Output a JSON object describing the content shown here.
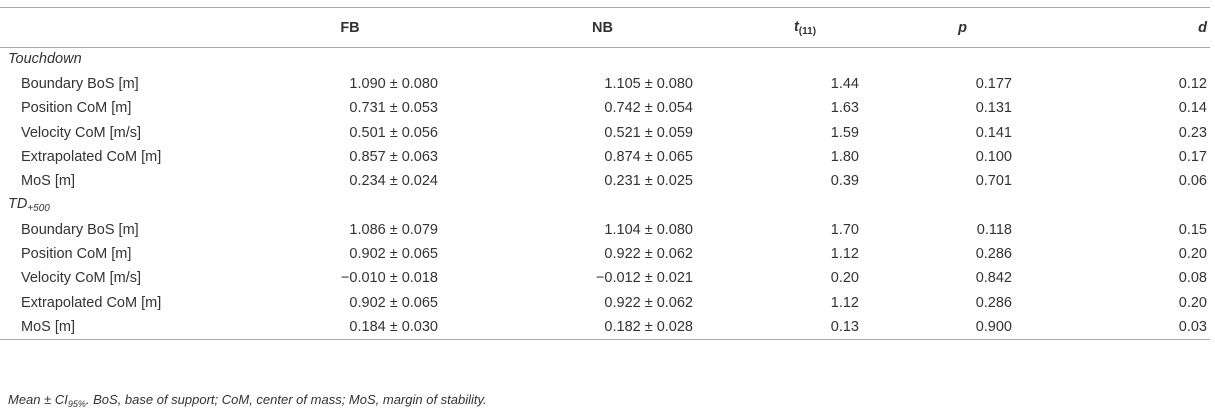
{
  "header": {
    "col0": "",
    "col1": "FB",
    "col2": "NB",
    "col3_main": "t",
    "col3_sub": "(11)",
    "col4": "p",
    "col5": "d"
  },
  "sections": [
    {
      "title_main": "Touchdown",
      "title_sub": "",
      "rows": [
        {
          "label": "Boundary BoS [m]",
          "fb": "1.090 ± 0.080",
          "nb": "1.105 ± 0.080",
          "t": "1.44",
          "p": "0.177",
          "d": "0.12"
        },
        {
          "label": "Position CoM [m]",
          "fb": "0.731 ± 0.053",
          "nb": "0.742 ± 0.054",
          "t": "1.63",
          "p": "0.131",
          "d": "0.14"
        },
        {
          "label": "Velocity CoM [m/s]",
          "fb": "0.501 ± 0.056",
          "nb": "0.521 ± 0.059",
          "t": "1.59",
          "p": "0.141",
          "d": "0.23"
        },
        {
          "label": "Extrapolated CoM [m]",
          "fb": "0.857 ± 0.063",
          "nb": "0.874 ± 0.065",
          "t": "1.80",
          "p": "0.100",
          "d": "0.17"
        },
        {
          "label": "MoS [m]",
          "fb": "0.234 ± 0.024",
          "nb": "0.231 ± 0.025",
          "t": "0.39",
          "p": "0.701",
          "d": "0.06"
        }
      ]
    },
    {
      "title_main": "TD",
      "title_sub": "+500",
      "rows": [
        {
          "label": "Boundary BoS [m]",
          "fb": "1.086 ± 0.079",
          "nb": "1.104 ± 0.080",
          "t": "1.70",
          "p": "0.118",
          "d": "0.15"
        },
        {
          "label": "Position CoM [m]",
          "fb": "0.902 ± 0.065",
          "nb": "0.922 ± 0.062",
          "t": "1.12",
          "p": "0.286",
          "d": "0.20"
        },
        {
          "label": "Velocity CoM [m/s]",
          "fb": "−0.010 ± 0.018",
          "nb": "−0.012 ± 0.021",
          "t": "0.20",
          "p": "0.842",
          "d": "0.08"
        },
        {
          "label": "Extrapolated CoM [m]",
          "fb": "0.902 ± 0.065",
          "nb": "0.922 ± 0.062",
          "t": "1.12",
          "p": "0.286",
          "d": "0.20"
        },
        {
          "label": "MoS [m]",
          "fb": "0.184 ± 0.030",
          "nb": "0.182 ± 0.028",
          "t": "0.13",
          "p": "0.900",
          "d": "0.03"
        }
      ]
    }
  ],
  "footnote": {
    "part1": "Mean ± CI",
    "part1_sub": "95%",
    "part2": ". BoS, base of support; CoM, center of mass; MoS, margin of stability."
  }
}
